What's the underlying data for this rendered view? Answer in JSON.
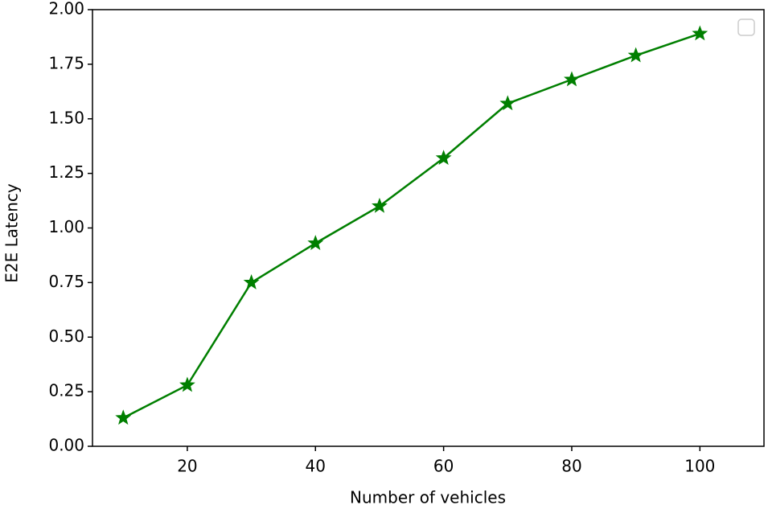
{
  "chart_data": {
    "type": "line",
    "xlabel": "Number of vehicles",
    "ylabel": "E2E Latency",
    "x": [
      10,
      20,
      30,
      40,
      50,
      60,
      70,
      80,
      90,
      100
    ],
    "series": [
      {
        "color": "#007f00",
        "values": [
          0.13,
          0.28,
          0.75,
          0.93,
          1.1,
          1.32,
          1.57,
          1.68,
          1.79,
          1.89
        ]
      }
    ],
    "xlim": [
      5.2,
      110
    ],
    "xticks": [
      20,
      40,
      60,
      80,
      100
    ],
    "ylim": [
      0,
      2
    ],
    "yticks": [
      {
        "value": 0,
        "label": "0.00"
      },
      {
        "value": 0.25,
        "label": "0.25"
      },
      {
        "value": 0.5,
        "label": "0.50"
      },
      {
        "value": 0.75,
        "label": "0.75"
      },
      {
        "value": 1,
        "label": "1.00"
      },
      {
        "value": 1.25,
        "label": "1.25"
      },
      {
        "value": 1.5,
        "label": "1.50"
      },
      {
        "value": 1.75,
        "label": "1.75"
      },
      {
        "value": 2,
        "label": "2.00"
      }
    ]
  }
}
